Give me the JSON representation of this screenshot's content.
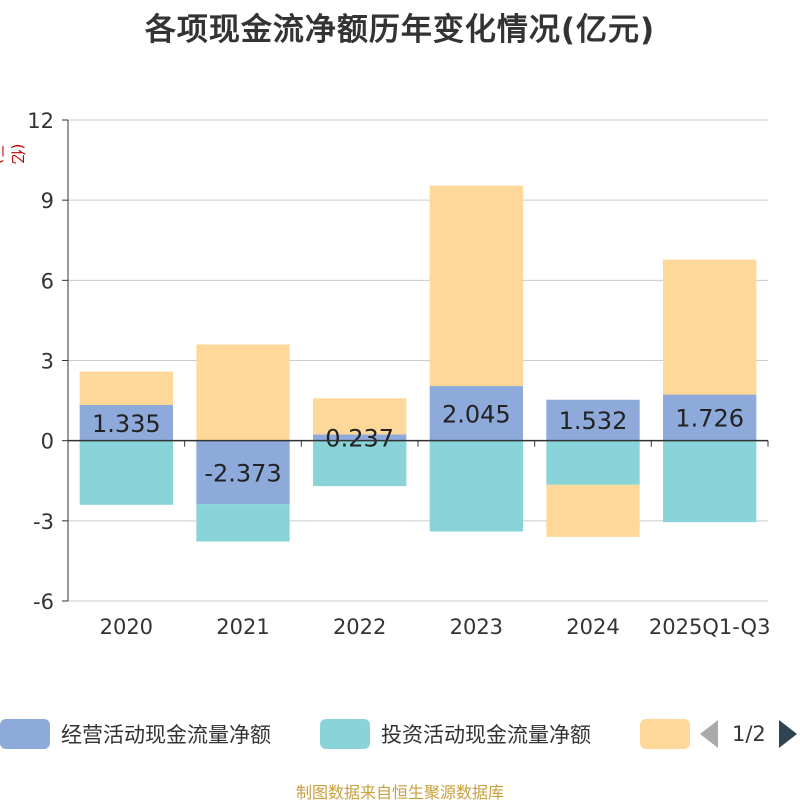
{
  "chart_data": {
    "type": "bar",
    "stacked": true,
    "title": "各项现金流净额历年变化情况(亿元)",
    "ylabel": "(亿元)",
    "xlabel": "",
    "ylim": [
      -6,
      12
    ],
    "yticks": [
      -6,
      -3,
      0,
      3,
      6,
      9,
      12
    ],
    "categories": [
      "2020",
      "2021",
      "2022",
      "2023",
      "2024",
      "2025Q1-Q3"
    ],
    "series": [
      {
        "name": "经营活动现金流量净额",
        "color": "#8eaadb",
        "values": [
          1.335,
          -2.373,
          0.237,
          2.045,
          1.532,
          1.726
        ],
        "labels": [
          "1.335",
          "-2.373",
          "0.237",
          "2.045",
          "1.532",
          "1.726"
        ]
      },
      {
        "name": "投资活动现金流量净额",
        "color": "#88d4d8",
        "values": [
          -2.4,
          -1.4,
          -1.7,
          -3.4,
          -1.65,
          -3.05
        ]
      },
      {
        "name": "",
        "color": "#fdd898",
        "values": [
          1.25,
          3.6,
          1.35,
          7.5,
          -1.95,
          5.05
        ]
      }
    ],
    "legend_position": "bottom",
    "legend_page": "1/2",
    "grid": true
  },
  "footer": {
    "source": "制图数据来自恒生聚源数据库"
  }
}
